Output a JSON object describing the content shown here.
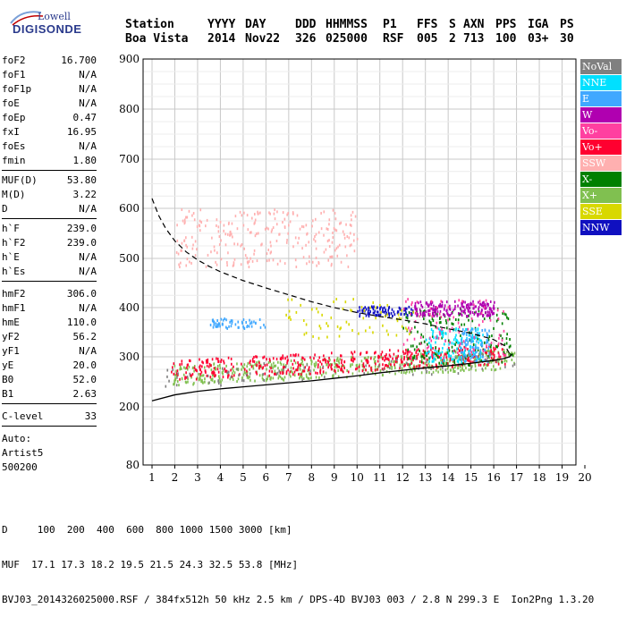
{
  "logo": {
    "line1": "Lowell",
    "line2": "DIGISONDE"
  },
  "header": {
    "labels": [
      "Station",
      "YYYY",
      "DAY",
      "DDD",
      "HHMMSS",
      "P1",
      "FFS",
      "S",
      "AXN",
      "PPS",
      "IGA",
      "PS"
    ],
    "values": [
      "Boa Vista",
      "2014",
      "Nov22",
      "326",
      "025000",
      "RSF",
      "005",
      "2",
      "713",
      "100",
      "03+",
      "30"
    ]
  },
  "params": {
    "group1": [
      {
        "k": "foF2",
        "v": "16.700"
      },
      {
        "k": "foF1",
        "v": "N/A"
      },
      {
        "k": "foF1p",
        "v": "N/A"
      },
      {
        "k": "foE",
        "v": "N/A"
      },
      {
        "k": "foEp",
        "v": "0.47"
      },
      {
        "k": "fxI",
        "v": "16.95"
      },
      {
        "k": "foEs",
        "v": "N/A"
      },
      {
        "k": "fmin",
        "v": "1.80"
      }
    ],
    "group2": [
      {
        "k": "MUF(D)",
        "v": "53.80"
      },
      {
        "k": "M(D)",
        "v": "3.22"
      },
      {
        "k": "D",
        "v": "N/A"
      }
    ],
    "group3": [
      {
        "k": "h`F",
        "v": "239.0"
      },
      {
        "k": "h`F2",
        "v": "239.0"
      },
      {
        "k": "h`E",
        "v": "N/A"
      },
      {
        "k": "h`Es",
        "v": "N/A"
      }
    ],
    "group4": [
      {
        "k": "hmF2",
        "v": "306.0"
      },
      {
        "k": "hmF1",
        "v": "N/A"
      },
      {
        "k": "hmE",
        "v": "110.0"
      },
      {
        "k": "yF2",
        "v": "56.2"
      },
      {
        "k": "yF1",
        "v": "N/A"
      },
      {
        "k": "yE",
        "v": "20.0"
      },
      {
        "k": "B0",
        "v": "52.0"
      },
      {
        "k": "B1",
        "v": "2.63"
      }
    ],
    "clevel": {
      "k": "C-level",
      "v": "33"
    },
    "auto": [
      "Auto:",
      "Artist5",
      "500200"
    ]
  },
  "legend": [
    {
      "label": "NoVal",
      "color": "#808080"
    },
    {
      "label": "NNE",
      "color": "#00e0ff"
    },
    {
      "label": "E",
      "color": "#40a8ff"
    },
    {
      "label": "W",
      "color": "#b000b0"
    },
    {
      "label": "Vo-",
      "color": "#ff40a0"
    },
    {
      "label": "Vo+",
      "color": "#ff0030"
    },
    {
      "label": "SSW",
      "color": "#ffb0b0"
    },
    {
      "label": "X-",
      "color": "#008000"
    },
    {
      "label": "X+",
      "color": "#80c050"
    },
    {
      "label": "SSE",
      "color": "#d8d800"
    },
    {
      "label": "NNW",
      "color": "#1010c0"
    }
  ],
  "footer": {
    "line1": "D     100  200  400  600  800 1000 1500 3000 [km]",
    "line2": "MUF  17.1 17.3 18.2 19.5 21.5 24.3 32.5 53.8 [MHz]",
    "line3": "BVJ03_2014326025000.RSF / 384fx512h 50 kHz 2.5 km / DPS-4D BVJ03 003 / 2.8 N 299.3 E  Ion2Png 1.3.20"
  },
  "chart_data": {
    "type": "scatter",
    "x": [
      1,
      2,
      3,
      4,
      5,
      6,
      7,
      8,
      9,
      10,
      11,
      12,
      13,
      14,
      15,
      16,
      17,
      18,
      19,
      20
    ],
    "xlim": [
      1,
      20
    ],
    "ylim": [
      80,
      900
    ],
    "x_ticks": [
      1,
      2,
      3,
      4,
      5,
      6,
      7,
      8,
      9,
      10,
      11,
      12,
      13,
      14,
      15,
      16,
      17,
      18,
      19,
      20
    ],
    "y_ticks": [
      80,
      200,
      300,
      400,
      500,
      600,
      700,
      800,
      900
    ],
    "grid": true,
    "legend_position": "right",
    "traces": {
      "solid_profile": {
        "x": [
          1.0,
          2.0,
          3.0,
          4.0,
          5.0,
          6.0,
          7.0,
          8.0,
          9.0,
          10.0,
          11.0,
          12.0,
          13.0,
          14.0,
          15.0,
          15.5,
          16.0,
          16.4,
          16.7,
          16.8
        ],
        "y": [
          212,
          224,
          231,
          236,
          240,
          244,
          248,
          252,
          257,
          262,
          268,
          273,
          278,
          282,
          287,
          290,
          293,
          296,
          300,
          306
        ]
      },
      "dashed_profile": {
        "x": [
          1.0,
          1.3,
          1.6,
          2.0,
          2.5,
          3.0,
          3.5,
          4.0,
          5.0,
          6.0,
          7.0,
          8.0,
          9.0,
          10.0,
          11.0,
          12.0,
          13.0,
          14.0,
          15.0,
          16.0,
          16.5,
          16.7
        ],
        "y": [
          620,
          585,
          560,
          535,
          513,
          497,
          484,
          473,
          455,
          440,
          426,
          412,
          400,
          390,
          382,
          375,
          367,
          357,
          348,
          335,
          322,
          306
        ]
      },
      "trace_clusters": [
        {
          "name": "X+",
          "x_range": [
            1.9,
            16.9
          ],
          "y_range": [
            245,
            300
          ],
          "count": 520
        },
        {
          "name": "Vo+",
          "x_range": [
            1.8,
            16.5
          ],
          "y_range": [
            255,
            315
          ],
          "count": 460
        },
        {
          "name": "X-",
          "x_range": [
            12.0,
            16.8
          ],
          "y_range": [
            285,
            400
          ],
          "count": 180
        },
        {
          "name": "NNE",
          "x_range": [
            13.0,
            15.5
          ],
          "y_range": [
            290,
            360
          ],
          "count": 140
        },
        {
          "name": "E",
          "x_range": [
            14.5,
            15.8
          ],
          "y_range": [
            290,
            360
          ],
          "count": 90
        },
        {
          "name": "E",
          "x_range": [
            3.5,
            6.0
          ],
          "y_range": [
            360,
            380
          ],
          "count": 60
        },
        {
          "name": "W",
          "x_range": [
            12.5,
            16.0
          ],
          "y_range": [
            385,
            415
          ],
          "count": 200
        },
        {
          "name": "NNW",
          "x_range": [
            10.0,
            12.5
          ],
          "y_range": [
            385,
            405
          ],
          "count": 90
        },
        {
          "name": "SSW",
          "x_range": [
            2.0,
            10.0
          ],
          "y_range": [
            485,
            600
          ],
          "count": 260
        },
        {
          "name": "SSE",
          "x_range": [
            6.8,
            12.5
          ],
          "y_range": [
            340,
            420
          ],
          "count": 70
        },
        {
          "name": "NoVal",
          "x_range": [
            1.5,
            17.0
          ],
          "y_range": [
            240,
            620
          ],
          "count": 80
        },
        {
          "name": "Vo-",
          "x_range": [
            12.0,
            16.5
          ],
          "y_range": [
            300,
            420
          ],
          "count": 90
        }
      ]
    }
  }
}
